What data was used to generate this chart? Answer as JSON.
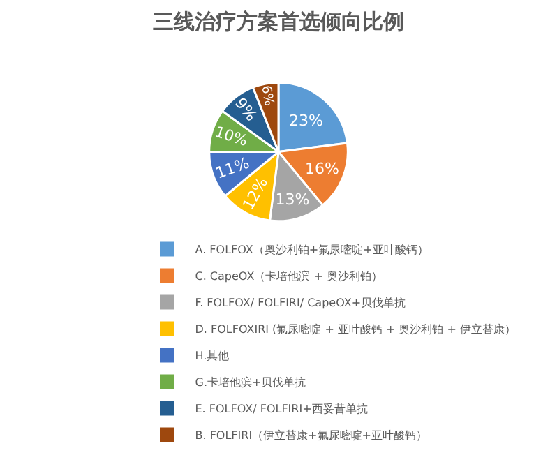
{
  "chart_data": {
    "type": "pie",
    "title": "三线治疗方案首选倾向比例",
    "categories": [
      "A. FOLFOX（奥沙利铂+氟尿嘧啶+亚叶酸钙）",
      "C. CapeOX（卡培他滨 + 奥沙利铂）",
      "F. FOLFOX/ FOLFIRI/ CapeOX+贝伐单抗",
      "D. FOLFOXIRI (氟尿嘧啶 + 亚叶酸钙 + 奥沙利铂 + 伊立替康）",
      "H.其他",
      "G.卡培他滨+贝伐单抗",
      "E. FOLFOX/ FOLFIRI+西妥昔单抗",
      "B. FOLFIRI（伊立替康+氟尿嘧啶+亚叶酸钙）"
    ],
    "values": [
      23,
      16,
      13,
      12,
      11,
      10,
      9,
      6
    ],
    "value_labels": [
      "23%",
      "16%",
      "13%",
      "12%",
      "11%",
      "10%",
      "9%",
      "6%"
    ],
    "colors": [
      "#5b9bd5",
      "#ed7d31",
      "#a5a5a5",
      "#ffc000",
      "#4472c4",
      "#70ad47",
      "#255e91",
      "#9e480e"
    ],
    "legend": "bottom"
  }
}
